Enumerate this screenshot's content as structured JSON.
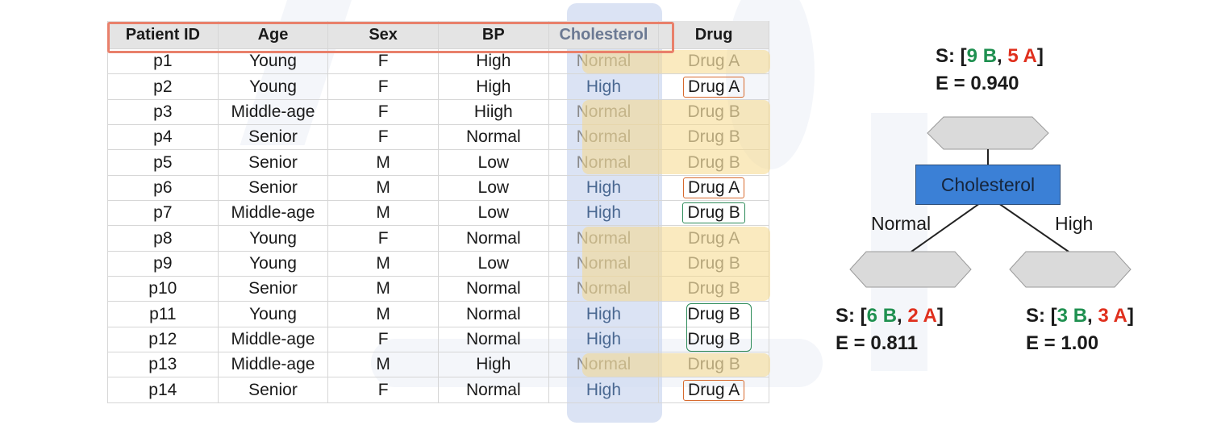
{
  "table": {
    "columns": [
      "Patient ID",
      "Age",
      "Sex",
      "BP",
      "Cholesterol",
      "Drug"
    ],
    "rows": [
      {
        "id": "p1",
        "age": "Young",
        "sex": "F",
        "bp": "High",
        "chol": "Normal",
        "drug": "Drug A"
      },
      {
        "id": "p2",
        "age": "Young",
        "sex": "F",
        "bp": "High",
        "chol": "High",
        "drug": "Drug A"
      },
      {
        "id": "p3",
        "age": "Middle-age",
        "sex": "F",
        "bp": "Hiigh",
        "chol": "Normal",
        "drug": "Drug B"
      },
      {
        "id": "p4",
        "age": "Senior",
        "sex": "F",
        "bp": "Normal",
        "chol": "Normal",
        "drug": "Drug B"
      },
      {
        "id": "p5",
        "age": "Senior",
        "sex": "M",
        "bp": "Low",
        "chol": "Normal",
        "drug": "Drug B"
      },
      {
        "id": "p6",
        "age": "Senior",
        "sex": "M",
        "bp": "Low",
        "chol": "High",
        "drug": "Drug A"
      },
      {
        "id": "p7",
        "age": "Middle-age",
        "sex": "M",
        "bp": "Low",
        "chol": "High",
        "drug": "Drug B"
      },
      {
        "id": "p8",
        "age": "Young",
        "sex": "F",
        "bp": "Normal",
        "chol": "Normal",
        "drug": "Drug A"
      },
      {
        "id": "p9",
        "age": "Young",
        "sex": "M",
        "bp": "Low",
        "chol": "Normal",
        "drug": "Drug B"
      },
      {
        "id": "p10",
        "age": "Senior",
        "sex": "M",
        "bp": "Normal",
        "chol": "Normal",
        "drug": "Drug B"
      },
      {
        "id": "p11",
        "age": "Young",
        "sex": "M",
        "bp": "Normal",
        "chol": "High",
        "drug": "Drug B"
      },
      {
        "id": "p12",
        "age": "Middle-age",
        "sex": "F",
        "bp": "Normal",
        "chol": "High",
        "drug": "Drug B"
      },
      {
        "id": "p13",
        "age": "Middle-age",
        "sex": "M",
        "bp": "High",
        "chol": "Normal",
        "drug": "Drug B"
      },
      {
        "id": "p14",
        "age": "Senior",
        "sex": "F",
        "bp": "Normal",
        "chol": "High",
        "drug": "Drug A"
      }
    ]
  },
  "tree": {
    "root": {
      "s_prefix": "S: [",
      "b_count": "9 B",
      "sep": ", ",
      "a_count": "5 A",
      "s_suffix": "]",
      "entropy": "E = 0.940"
    },
    "split_node": "Cholesterol",
    "left_branch": "Normal",
    "right_branch": "High",
    "left": {
      "s_prefix": "S: [",
      "b_count": "6 B",
      "sep": ", ",
      "a_count": "2 A",
      "s_suffix": "]",
      "entropy": "E = 0.811"
    },
    "right": {
      "s_prefix": "S: [",
      "b_count": "3 B",
      "sep": ", ",
      "a_count": "3 A",
      "s_suffix": "]",
      "entropy": "E = 1.00"
    }
  },
  "colors": {
    "b_count": "#1f9050",
    "a_count": "#e0301e",
    "split_node_fill": "#3b80d6",
    "hexagon_fill": "#dadada",
    "column_highlight": "#cfdaf0",
    "row_highlight": "#f6d88a",
    "header_outline": "#e9806b",
    "drug_a_outline": "#d76a2e",
    "drug_b_outline": "#2e8c5a"
  }
}
